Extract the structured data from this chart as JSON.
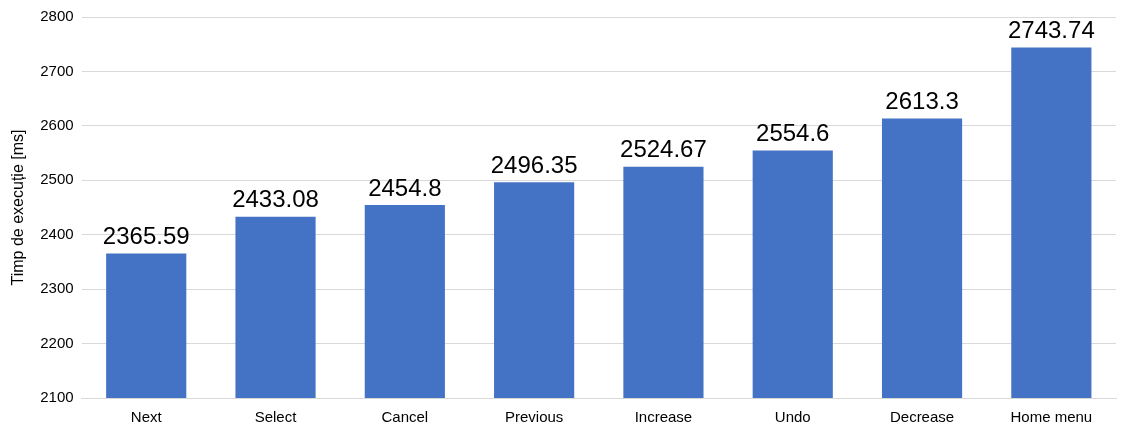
{
  "chart_data": {
    "type": "bar",
    "ylabel": "Timp de execuție [ms]",
    "categories": [
      "Next",
      "Select",
      "Cancel",
      "Previous",
      "Increase",
      "Undo",
      "Decrease",
      "Home menu"
    ],
    "values": [
      2365.59,
      2433.08,
      2454.8,
      2496.35,
      2524.67,
      2554.6,
      2613.3,
      2743.74
    ],
    "color": "#4472c4",
    "ylim": [
      2100,
      2800
    ],
    "yticks": [
      2100,
      2200,
      2300,
      2400,
      2500,
      2600,
      2700,
      2800
    ],
    "grid": "y",
    "data_labels": true
  }
}
